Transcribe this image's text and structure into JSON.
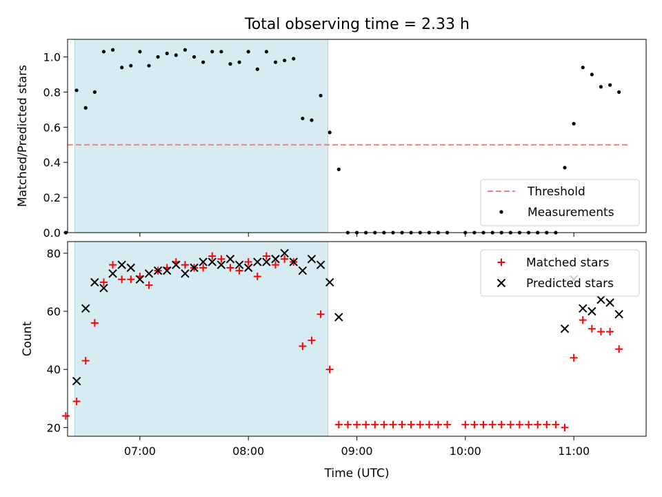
{
  "figure": {
    "title": "Total observing time = 2.33 h"
  },
  "colors": {
    "band": "#add8e6",
    "threshold": "#f08080",
    "measurement": "#000000",
    "matched": "#ff0000",
    "predicted": "#000000"
  },
  "chart_data": [
    {
      "type": "scatter",
      "panel": "top",
      "ylabel": "Matched/Predicted stars",
      "xlabel": "",
      "xlim": [
        "06:20",
        "11:40"
      ],
      "ylim": [
        0,
        1.1
      ],
      "yticks": [
        "0.0",
        "0.2",
        "0.4",
        "0.6",
        "0.8",
        "1.0"
      ],
      "yticks_values": [
        0,
        0.2,
        0.4,
        0.6,
        0.8,
        1.0
      ],
      "shaded_span": [
        "06:24",
        "08:44"
      ],
      "legend": {
        "placement": "lower-right",
        "entries": [
          "Threshold",
          "Measurements"
        ]
      },
      "threshold": {
        "name": "Threshold",
        "value": 0.5,
        "x_range": [
          "06:20",
          "11:30"
        ]
      },
      "series": [
        {
          "name": "Measurements",
          "x": [
            "06:19",
            "06:25",
            "06:30",
            "06:35",
            "06:40",
            "06:45",
            "06:50",
            "06:55",
            "07:00",
            "07:05",
            "07:10",
            "07:15",
            "07:20",
            "07:25",
            "07:30",
            "07:35",
            "07:40",
            "07:45",
            "07:50",
            "07:55",
            "08:00",
            "08:05",
            "08:10",
            "08:15",
            "08:20",
            "08:25",
            "08:30",
            "08:35",
            "08:40",
            "08:45",
            "08:50",
            "08:55",
            "09:00",
            "09:05",
            "09:10",
            "09:15",
            "09:20",
            "09:25",
            "09:30",
            "09:35",
            "09:40",
            "09:45",
            "09:50",
            "10:00",
            "10:05",
            "10:10",
            "10:15",
            "10:20",
            "10:25",
            "10:30",
            "10:35",
            "10:40",
            "10:45",
            "10:50",
            "10:55",
            "11:00",
            "11:05",
            "11:10",
            "11:15",
            "11:20",
            "11:25"
          ],
          "y": [
            0.0,
            0.81,
            0.71,
            0.8,
            1.03,
            1.04,
            0.94,
            0.95,
            1.03,
            0.95,
            1.0,
            1.02,
            1.01,
            1.04,
            1.0,
            0.97,
            1.03,
            1.03,
            0.96,
            0.97,
            1.03,
            0.93,
            1.03,
            0.97,
            0.98,
            0.99,
            0.65,
            0.64,
            0.78,
            0.57,
            0.36,
            0.0,
            0.0,
            0.0,
            0.0,
            0.0,
            0.0,
            0.0,
            0.0,
            0.0,
            0.0,
            0.0,
            0.0,
            0.0,
            0.0,
            0.0,
            0.0,
            0.0,
            0.0,
            0.0,
            0.0,
            0.0,
            0.0,
            0.0,
            0.37,
            0.62,
            0.94,
            0.9,
            0.83,
            0.84,
            0.8
          ]
        }
      ]
    },
    {
      "type": "scatter",
      "panel": "bottom",
      "ylabel": "Count",
      "xlabel": "Time (UTC)",
      "xlim": [
        "06:20",
        "11:40"
      ],
      "ylim": [
        17,
        84
      ],
      "yticks": [
        "20",
        "40",
        "60",
        "80"
      ],
      "yticks_values": [
        20,
        40,
        60,
        80
      ],
      "xticks": [
        "07:00",
        "08:00",
        "09:00",
        "10:00",
        "11:00"
      ],
      "xticks_values": [
        "07:00",
        "08:00",
        "09:00",
        "10:00",
        "11:00"
      ],
      "shaded_span": [
        "06:24",
        "08:44"
      ],
      "legend": {
        "placement": "upper-right",
        "entries": [
          "Matched stars",
          "Predicted stars"
        ]
      },
      "series": [
        {
          "name": "Matched stars",
          "marker": "+",
          "x": [
            "06:19",
            "06:25",
            "06:30",
            "06:35",
            "06:40",
            "06:45",
            "06:50",
            "06:55",
            "07:00",
            "07:05",
            "07:10",
            "07:15",
            "07:20",
            "07:25",
            "07:30",
            "07:35",
            "07:40",
            "07:45",
            "07:50",
            "07:55",
            "08:00",
            "08:05",
            "08:10",
            "08:15",
            "08:20",
            "08:25",
            "08:30",
            "08:35",
            "08:40",
            "08:45",
            "08:50",
            "08:55",
            "09:00",
            "09:05",
            "09:10",
            "09:15",
            "09:20",
            "09:25",
            "09:30",
            "09:35",
            "09:40",
            "09:45",
            "09:50",
            "10:00",
            "10:05",
            "10:10",
            "10:15",
            "10:20",
            "10:25",
            "10:30",
            "10:35",
            "10:40",
            "10:45",
            "10:50",
            "10:55",
            "11:00",
            "11:05",
            "11:10",
            "11:15",
            "11:20",
            "11:25"
          ],
          "y": [
            24,
            29,
            43,
            56,
            70,
            76,
            71,
            71,
            72,
            69,
            74,
            75,
            77,
            76,
            75,
            75,
            79,
            78,
            75,
            74,
            77,
            72,
            79,
            76,
            78,
            77,
            48,
            50,
            59,
            40,
            21,
            21,
            21,
            21,
            21,
            21,
            21,
            21,
            21,
            21,
            21,
            21,
            21,
            21,
            21,
            21,
            21,
            21,
            21,
            21,
            21,
            21,
            21,
            21,
            20,
            44,
            57,
            54,
            53,
            53,
            47
          ]
        },
        {
          "name": "Predicted stars",
          "marker": "x",
          "x": [
            "06:25",
            "06:30",
            "06:35",
            "06:40",
            "06:45",
            "06:50",
            "06:55",
            "07:00",
            "07:05",
            "07:10",
            "07:15",
            "07:20",
            "07:25",
            "07:30",
            "07:35",
            "07:40",
            "07:45",
            "07:50",
            "07:55",
            "08:00",
            "08:05",
            "08:10",
            "08:15",
            "08:20",
            "08:25",
            "08:30",
            "08:35",
            "08:40",
            "08:45",
            "08:50",
            "10:55",
            "11:00",
            "11:05",
            "11:10",
            "11:15",
            "11:20",
            "11:25"
          ],
          "y": [
            36,
            61,
            70,
            68,
            73,
            76,
            75,
            71,
            73,
            74,
            74,
            76,
            73,
            75,
            77,
            77,
            76,
            78,
            76,
            75,
            77,
            77,
            78,
            80,
            77,
            74,
            78,
            76,
            70,
            58,
            54,
            71,
            61,
            60,
            64,
            63,
            59
          ]
        }
      ]
    }
  ]
}
